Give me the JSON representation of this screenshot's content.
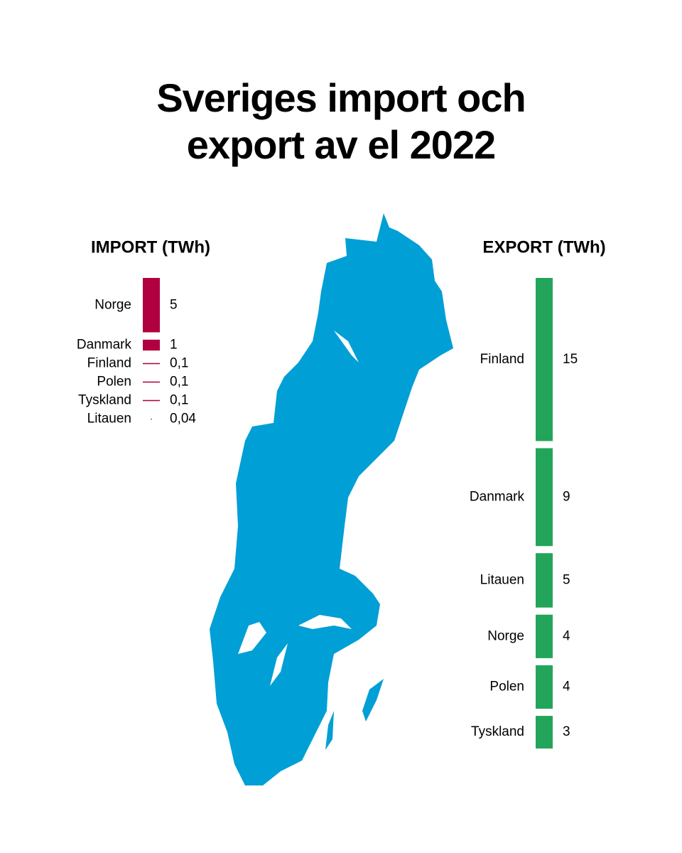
{
  "title": "Sveriges import och export av el 2022",
  "chart_data": [
    {
      "type": "bar",
      "title": "IMPORT (TWh)",
      "color": "#b0003f",
      "categories": [
        "Norge",
        "Danmark",
        "Finland",
        "Polen",
        "Tyskland",
        "Litauen"
      ],
      "values": [
        5,
        1,
        0.1,
        0.1,
        0.1,
        0.04
      ],
      "value_labels": [
        "5",
        "1",
        "0,1",
        "0,1",
        "0,1",
        "0,04"
      ]
    },
    {
      "type": "bar",
      "title": "EXPORT (TWh)",
      "color": "#22a55a",
      "categories": [
        "Finland",
        "Danmark",
        "Litauen",
        "Norge",
        "Polen",
        "Tyskland"
      ],
      "values": [
        15,
        9,
        5,
        4,
        4,
        3
      ]
    }
  ]
}
